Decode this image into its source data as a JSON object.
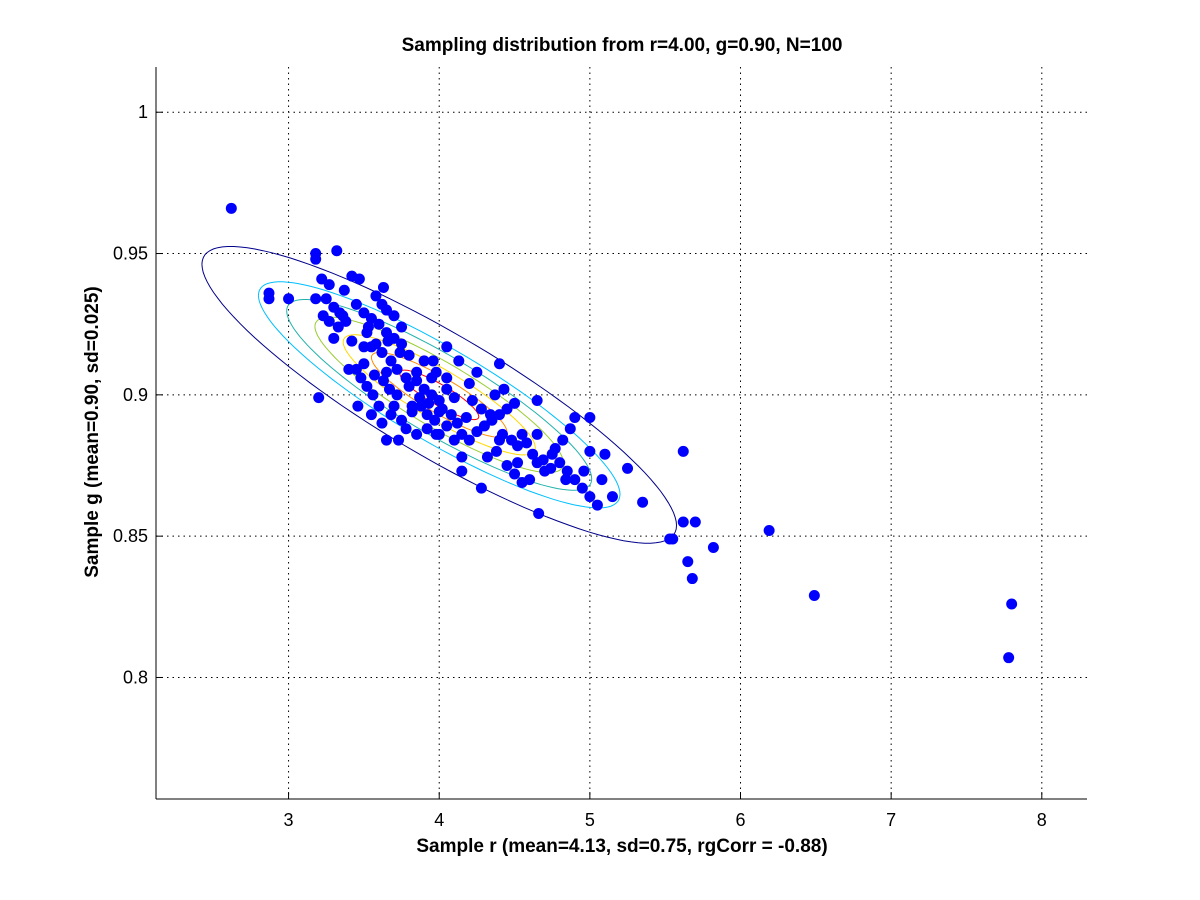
{
  "chart_data": {
    "type": "scatter",
    "title": "Sampling distribution from r=4.00, g=0.90, N=100",
    "xlabel": "Sample r (mean=4.13, sd=0.75, rgCorr = -0.88)",
    "ylabel": "Sample g (mean=0.90, sd=0.025)",
    "xlim": [
      2.12,
      8.3
    ],
    "ylim": [
      0.757,
      1.016
    ],
    "xticks": [
      3,
      4,
      5,
      6,
      7,
      8
    ],
    "xtick_labels": [
      "3",
      "4",
      "5",
      "6",
      "7",
      "8"
    ],
    "yticks": [
      0.8,
      0.85,
      0.9,
      0.95,
      1
    ],
    "ytick_labels": [
      "0.8",
      "0.85",
      "0.9",
      "0.95",
      "1"
    ],
    "grid": true,
    "marker_color": "#0000ff",
    "contours": {
      "center": [
        4.0,
        0.9
      ],
      "sd": [
        0.75,
        0.025
      ],
      "corr": -0.88,
      "levels_sigma": [
        0.35,
        0.6,
        0.85,
        1.1,
        1.35,
        1.6,
        2.1
      ],
      "colors": [
        "#ff0000",
        "#ff8c00",
        "#ffd700",
        "#9acd32",
        "#20b2aa",
        "#00bfff",
        "#00008b"
      ]
    },
    "points": [
      [
        2.62,
        0.966
      ],
      [
        2.87,
        0.936
      ],
      [
        2.87,
        0.934
      ],
      [
        3.0,
        0.934
      ],
      [
        3.18,
        0.95
      ],
      [
        3.18,
        0.948
      ],
      [
        3.32,
        0.951
      ],
      [
        3.22,
        0.941
      ],
      [
        3.27,
        0.939
      ],
      [
        3.37,
        0.937
      ],
      [
        3.42,
        0.942
      ],
      [
        3.47,
        0.941
      ],
      [
        3.2,
        0.899
      ],
      [
        3.18,
        0.934
      ],
      [
        3.25,
        0.934
      ],
      [
        3.3,
        0.931
      ],
      [
        3.36,
        0.928
      ],
      [
        3.23,
        0.928
      ],
      [
        3.27,
        0.926
      ],
      [
        3.33,
        0.924
      ],
      [
        3.3,
        0.92
      ],
      [
        3.45,
        0.932
      ],
      [
        3.5,
        0.929
      ],
      [
        3.55,
        0.927
      ],
      [
        3.6,
        0.925
      ],
      [
        3.65,
        0.93
      ],
      [
        3.7,
        0.928
      ],
      [
        3.75,
        0.924
      ],
      [
        3.52,
        0.922
      ],
      [
        3.58,
        0.918
      ],
      [
        3.62,
        0.915
      ],
      [
        3.68,
        0.912
      ],
      [
        3.55,
        0.917
      ],
      [
        3.5,
        0.917
      ],
      [
        3.45,
        0.909
      ],
      [
        3.4,
        0.909
      ],
      [
        3.48,
        0.906
      ],
      [
        3.52,
        0.903
      ],
      [
        3.57,
        0.907
      ],
      [
        3.63,
        0.905
      ],
      [
        3.67,
        0.902
      ],
      [
        3.72,
        0.9
      ],
      [
        3.8,
        0.903
      ],
      [
        3.85,
        0.905
      ],
      [
        3.9,
        0.902
      ],
      [
        3.95,
        0.9
      ],
      [
        4.0,
        0.898
      ],
      [
        4.05,
        0.902
      ],
      [
        4.1,
        0.899
      ],
      [
        3.6,
        0.896
      ],
      [
        3.55,
        0.893
      ],
      [
        3.62,
        0.89
      ],
      [
        3.68,
        0.893
      ],
      [
        3.75,
        0.891
      ],
      [
        3.82,
        0.894
      ],
      [
        3.88,
        0.896
      ],
      [
        3.92,
        0.893
      ],
      [
        3.97,
        0.891
      ],
      [
        4.02,
        0.895
      ],
      [
        4.08,
        0.893
      ],
      [
        3.65,
        0.884
      ],
      [
        3.73,
        0.884
      ],
      [
        3.85,
        0.886
      ],
      [
        3.92,
        0.888
      ],
      [
        3.98,
        0.886
      ],
      [
        4.05,
        0.889
      ],
      [
        4.12,
        0.89
      ],
      [
        4.18,
        0.892
      ],
      [
        4.15,
        0.886
      ],
      [
        4.2,
        0.884
      ],
      [
        4.25,
        0.887
      ],
      [
        4.3,
        0.889
      ],
      [
        4.35,
        0.891
      ],
      [
        4.4,
        0.893
      ],
      [
        4.45,
        0.895
      ],
      [
        4.5,
        0.897
      ],
      [
        4.42,
        0.886
      ],
      [
        4.48,
        0.884
      ],
      [
        4.52,
        0.882
      ],
      [
        4.55,
        0.886
      ],
      [
        4.38,
        0.88
      ],
      [
        4.32,
        0.878
      ],
      [
        4.45,
        0.875
      ],
      [
        4.5,
        0.872
      ],
      [
        4.6,
        0.87
      ],
      [
        4.65,
        0.876
      ],
      [
        4.7,
        0.873
      ],
      [
        4.75,
        0.879
      ],
      [
        4.8,
        0.876
      ],
      [
        4.85,
        0.873
      ],
      [
        4.9,
        0.87
      ],
      [
        4.95,
        0.867
      ],
      [
        5.0,
        0.864
      ],
      [
        5.05,
        0.861
      ],
      [
        5.15,
        0.864
      ],
      [
        5.25,
        0.874
      ],
      [
        5.35,
        0.862
      ],
      [
        4.55,
        0.869
      ],
      [
        4.66,
        0.858
      ],
      [
        4.28,
        0.867
      ],
      [
        4.15,
        0.873
      ],
      [
        4.15,
        0.878
      ],
      [
        4.65,
        0.886
      ],
      [
        4.77,
        0.881
      ],
      [
        4.82,
        0.884
      ],
      [
        4.87,
        0.888
      ],
      [
        4.9,
        0.892
      ],
      [
        5.0,
        0.892
      ],
      [
        5.0,
        0.88
      ],
      [
        5.1,
        0.879
      ],
      [
        4.65,
        0.898
      ],
      [
        4.4,
        0.911
      ],
      [
        4.2,
        0.904
      ],
      [
        4.25,
        0.908
      ],
      [
        4.13,
        0.912
      ],
      [
        4.05,
        0.917
      ],
      [
        3.98,
        0.908
      ],
      [
        3.9,
        0.912
      ],
      [
        3.8,
        0.914
      ],
      [
        3.75,
        0.918
      ],
      [
        3.7,
        0.92
      ],
      [
        3.65,
        0.922
      ],
      [
        3.85,
        0.908
      ],
      [
        3.95,
        0.906
      ],
      [
        4.05,
        0.906
      ],
      [
        3.72,
        0.909
      ],
      [
        3.78,
        0.906
      ],
      [
        3.5,
        0.911
      ],
      [
        3.42,
        0.919
      ],
      [
        3.38,
        0.926
      ],
      [
        3.34,
        0.929
      ],
      [
        3.62,
        0.932
      ],
      [
        3.58,
        0.935
      ],
      [
        3.63,
        0.938
      ],
      [
        3.53,
        0.924
      ],
      [
        3.66,
        0.919
      ],
      [
        3.74,
        0.915
      ],
      [
        3.82,
        0.896
      ],
      [
        3.87,
        0.899
      ],
      [
        4.0,
        0.894
      ],
      [
        3.93,
        0.897
      ],
      [
        4.22,
        0.898
      ],
      [
        4.28,
        0.895
      ],
      [
        4.34,
        0.893
      ],
      [
        4.37,
        0.9
      ],
      [
        4.43,
        0.902
      ],
      [
        4.58,
        0.883
      ],
      [
        4.62,
        0.879
      ],
      [
        4.69,
        0.877
      ],
      [
        4.74,
        0.874
      ],
      [
        4.84,
        0.87
      ],
      [
        4.96,
        0.873
      ],
      [
        5.08,
        0.87
      ],
      [
        3.96,
        0.912
      ],
      [
        4.0,
        0.886
      ],
      [
        4.1,
        0.884
      ],
      [
        3.78,
        0.888
      ],
      [
        3.7,
        0.896
      ],
      [
        4.52,
        0.876
      ],
      [
        4.4,
        0.884
      ],
      [
        3.56,
        0.9
      ],
      [
        3.46,
        0.896
      ],
      [
        3.65,
        0.908
      ],
      [
        5.62,
        0.88
      ],
      [
        5.53,
        0.849
      ],
      [
        5.55,
        0.849
      ],
      [
        5.62,
        0.855
      ],
      [
        5.7,
        0.855
      ],
      [
        5.65,
        0.841
      ],
      [
        5.68,
        0.835
      ],
      [
        5.82,
        0.846
      ],
      [
        6.19,
        0.852
      ],
      [
        6.49,
        0.829
      ],
      [
        7.8,
        0.826
      ],
      [
        7.78,
        0.807
      ]
    ]
  }
}
